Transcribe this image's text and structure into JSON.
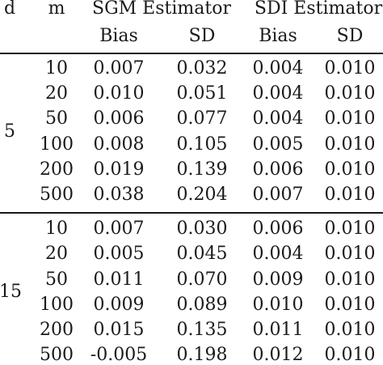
{
  "table": {
    "header": {
      "d": "d",
      "m": "m",
      "group1": "SGM Estimator",
      "group2": "SDI Estimator",
      "sub": [
        "Bias",
        "SD",
        "Bias",
        "SD"
      ]
    },
    "groups": [
      {
        "d": "5",
        "rows": [
          {
            "m": "10",
            "sgm_bias": "0.007",
            "sgm_sd": "0.032",
            "sdi_bias": "0.004",
            "sdi_sd": "0.010"
          },
          {
            "m": "20",
            "sgm_bias": "0.010",
            "sgm_sd": "0.051",
            "sdi_bias": "0.004",
            "sdi_sd": "0.010"
          },
          {
            "m": "50",
            "sgm_bias": "0.006",
            "sgm_sd": "0.077",
            "sdi_bias": "0.004",
            "sdi_sd": "0.010"
          },
          {
            "m": "100",
            "sgm_bias": "0.008",
            "sgm_sd": "0.105",
            "sdi_bias": "0.005",
            "sdi_sd": "0.010"
          },
          {
            "m": "200",
            "sgm_bias": "0.019",
            "sgm_sd": "0.139",
            "sdi_bias": "0.006",
            "sdi_sd": "0.010"
          },
          {
            "m": "500",
            "sgm_bias": "0.038",
            "sgm_sd": "0.204",
            "sdi_bias": "0.007",
            "sdi_sd": "0.010"
          }
        ]
      },
      {
        "d": "15",
        "rows": [
          {
            "m": "10",
            "sgm_bias": "0.007",
            "sgm_sd": "0.030",
            "sdi_bias": "0.006",
            "sdi_sd": "0.010"
          },
          {
            "m": "20",
            "sgm_bias": "0.005",
            "sgm_sd": "0.045",
            "sdi_bias": "0.004",
            "sdi_sd": "0.010"
          },
          {
            "m": "50",
            "sgm_bias": "0.011",
            "sgm_sd": "0.070",
            "sdi_bias": "0.009",
            "sdi_sd": "0.010"
          },
          {
            "m": "100",
            "sgm_bias": "0.009",
            "sgm_sd": "0.089",
            "sdi_bias": "0.010",
            "sdi_sd": "0.010"
          },
          {
            "m": "200",
            "sgm_bias": "0.015",
            "sgm_sd": "0.135",
            "sdi_bias": "0.011",
            "sdi_sd": "0.010"
          },
          {
            "m": "500",
            "sgm_bias": "-0.005",
            "sgm_sd": "0.198",
            "sdi_bias": "0.012",
            "sdi_sd": "0.010"
          }
        ]
      }
    ]
  }
}
